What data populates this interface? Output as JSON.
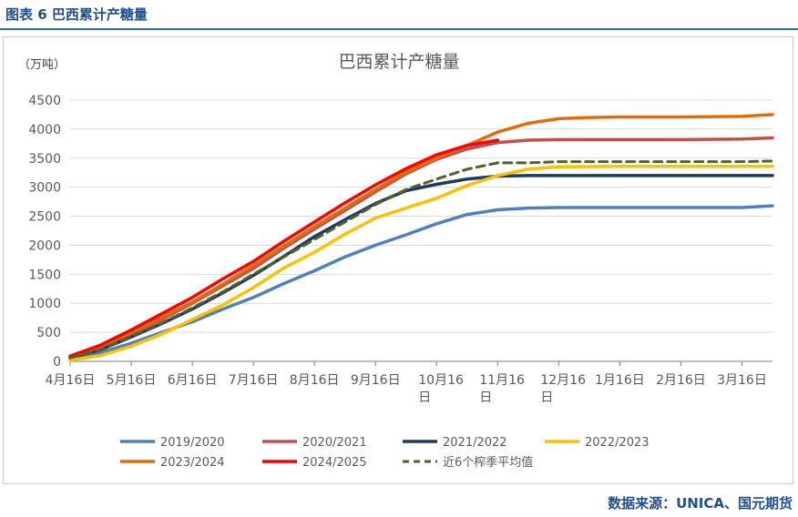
{
  "figure_caption": "图表 6 巴西累计产糖量",
  "source": "数据来源：UNICA、国元期货",
  "colors": {
    "caption": "#1f4e8c",
    "rule": "#2e6db4",
    "grid": "#d9d9d9",
    "axis": "#7f7f7f",
    "text": "#595959"
  },
  "chart_data": {
    "type": "line",
    "title": "巴西累计产糖量",
    "unit_label": "（万吨）",
    "xlabel": "",
    "ylabel": "",
    "ylim": [
      0,
      4500
    ],
    "y_ticks": [
      0,
      500,
      1000,
      1500,
      2000,
      2500,
      3000,
      3500,
      4000,
      4500
    ],
    "x_range": [
      0,
      11.5
    ],
    "x_tick_positions": [
      0,
      1,
      2,
      3,
      4,
      5,
      6,
      7,
      8,
      9,
      10,
      11
    ],
    "x_tick_labels": [
      [
        "4月16日"
      ],
      [
        "5月16日"
      ],
      [
        "6月16日"
      ],
      [
        "7月16日"
      ],
      [
        "8月16日"
      ],
      [
        "9月16日"
      ],
      [
        "10月16",
        "日"
      ],
      [
        "11月16",
        "日"
      ],
      [
        "12月16",
        "日"
      ],
      [
        "1月16日"
      ],
      [
        "2月16日"
      ],
      [
        "3月16日"
      ]
    ],
    "legend_position": "bottom",
    "series": [
      {
        "name": "2019/2020",
        "color": "#4f81bd",
        "dash": false,
        "x": [
          0,
          0.5,
          1,
          1.5,
          2,
          2.5,
          3,
          3.5,
          4,
          4.5,
          5,
          5.5,
          6,
          6.5,
          7,
          7.5,
          8,
          9,
          10,
          11,
          11.5
        ],
        "values": [
          40,
          150,
          310,
          500,
          680,
          900,
          1100,
          1340,
          1560,
          1800,
          2000,
          2180,
          2370,
          2530,
          2610,
          2640,
          2650,
          2650,
          2650,
          2650,
          2680
        ]
      },
      {
        "name": "2020/2021",
        "color": "#c0504d",
        "dash": false,
        "x": [
          0,
          0.5,
          1,
          1.5,
          2,
          2.5,
          3,
          3.5,
          4,
          4.5,
          5,
          5.5,
          6,
          6.5,
          7,
          7.5,
          8,
          9,
          10,
          11,
          11.5
        ],
        "values": [
          70,
          240,
          480,
          720,
          1000,
          1300,
          1600,
          1950,
          2280,
          2600,
          2920,
          3230,
          3480,
          3660,
          3770,
          3810,
          3820,
          3820,
          3820,
          3830,
          3850
        ]
      },
      {
        "name": "2021/2022",
        "color": "#1f3864",
        "dash": false,
        "x": [
          0,
          0.5,
          1,
          1.5,
          2,
          2.5,
          3,
          3.5,
          4,
          4.5,
          5,
          5.5,
          6,
          6.5,
          7,
          7.5,
          8,
          9,
          10,
          11,
          11.5
        ],
        "values": [
          60,
          200,
          420,
          650,
          900,
          1180,
          1480,
          1810,
          2150,
          2440,
          2720,
          2940,
          3050,
          3140,
          3190,
          3200,
          3200,
          3200,
          3200,
          3200,
          3200
        ]
      },
      {
        "name": "2022/2023",
        "color": "#ffc000",
        "dash": false,
        "x": [
          0,
          0.5,
          1,
          1.5,
          2,
          2.5,
          3,
          3.5,
          4,
          4.5,
          5,
          5.5,
          6,
          6.5,
          7,
          7.5,
          8,
          9,
          10,
          11,
          11.5
        ],
        "values": [
          20,
          100,
          260,
          470,
          720,
          970,
          1270,
          1610,
          1880,
          2190,
          2470,
          2640,
          2810,
          3030,
          3200,
          3310,
          3350,
          3360,
          3360,
          3360,
          3360
        ]
      },
      {
        "name": "2023/2024",
        "color": "#e36c09",
        "dash": false,
        "x": [
          0,
          0.5,
          1,
          1.5,
          2,
          2.5,
          3,
          3.5,
          4,
          4.5,
          5,
          5.5,
          6,
          6.5,
          7,
          7.5,
          8,
          8.5,
          9,
          10,
          11,
          11.5
        ],
        "values": [
          70,
          260,
          500,
          760,
          1020,
          1330,
          1650,
          1990,
          2320,
          2640,
          2960,
          3260,
          3500,
          3720,
          3950,
          4100,
          4180,
          4200,
          4210,
          4210,
          4220,
          4250
        ]
      },
      {
        "name": "2024/2025",
        "color": "#ff0000",
        "dash": false,
        "x": [
          0,
          0.5,
          1,
          1.5,
          2,
          2.5,
          3,
          3.5,
          4,
          4.5,
          5,
          5.5,
          6,
          6.5,
          7
        ],
        "values": [
          90,
          280,
          540,
          820,
          1100,
          1420,
          1720,
          2070,
          2400,
          2730,
          3040,
          3320,
          3560,
          3720,
          3810
        ]
      },
      {
        "name": "近6个榨季平均值",
        "color": "#4f6228",
        "dash": true,
        "x": [
          0,
          0.5,
          1,
          1.5,
          2,
          2.5,
          3,
          3.5,
          4,
          4.5,
          5,
          5.5,
          6,
          6.5,
          7,
          7.5,
          8,
          9,
          10,
          11,
          11.5
        ],
        "values": [
          60,
          200,
          430,
          660,
          920,
          1200,
          1500,
          1800,
          2100,
          2400,
          2700,
          2960,
          3140,
          3310,
          3420,
          3420,
          3440,
          3440,
          3440,
          3440,
          3450
        ]
      }
    ]
  }
}
